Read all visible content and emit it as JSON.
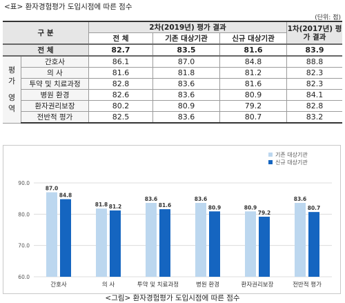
{
  "header": {
    "caption": "<표> 환자경험평가 도입시점에 따른 점수",
    "unit": "(단위: 점)"
  },
  "table": {
    "col_division": "구 분",
    "col_2nd_group": "2차(2019년) 평가 결과",
    "col_1st_group": "1차(2017년) 평가 결과",
    "sub_total": "전 체",
    "sub_existing": "기존 대상기관",
    "sub_new": "신규 대상기관",
    "total_label": "전 체",
    "total_values": [
      "82.7",
      "83.5",
      "81.6",
      "83.9"
    ],
    "region_label": [
      "평",
      "가",
      "영",
      "역"
    ],
    "rows": [
      {
        "label": "간호사",
        "values": [
          "86.1",
          "87.0",
          "84.8",
          "88.8"
        ]
      },
      {
        "label": "의 사",
        "values": [
          "81.6",
          "81.8",
          "81.2",
          "82.3"
        ]
      },
      {
        "label": "투약 및 치료과정",
        "values": [
          "82.8",
          "83.6",
          "81.6",
          "82.3"
        ]
      },
      {
        "label": "병원 환경",
        "values": [
          "82.6",
          "83.6",
          "80.9",
          "84.1"
        ]
      },
      {
        "label": "환자권리보장",
        "values": [
          "80.2",
          "80.9",
          "79.2",
          "82.8"
        ]
      },
      {
        "label": "전반적 평가",
        "values": [
          "82.5",
          "83.6",
          "80.7",
          "83.2"
        ]
      }
    ]
  },
  "chart_data": {
    "type": "bar",
    "categories": [
      "간호사",
      "의 사",
      "투약 및 치료과정",
      "병원 환경",
      "환자권리보장",
      "전반적 평가"
    ],
    "series": [
      {
        "name": "기존 대상기관",
        "values": [
          87.0,
          81.8,
          83.6,
          83.6,
          80.9,
          83.6
        ],
        "color": "#bcd7ef"
      },
      {
        "name": "신규 대상기관",
        "values": [
          84.8,
          81.2,
          81.6,
          80.9,
          79.2,
          80.7
        ],
        "color": "#1565c0"
      }
    ],
    "ylim": [
      60,
      90
    ],
    "yticks": [
      "60.0",
      "70.0",
      "80.0",
      "90.0"
    ],
    "grid": true,
    "legend": "top-right",
    "data_labels": true
  },
  "footer": {
    "caption": "<그림> 환자경험평가 도입시점에 따른 점수"
  }
}
